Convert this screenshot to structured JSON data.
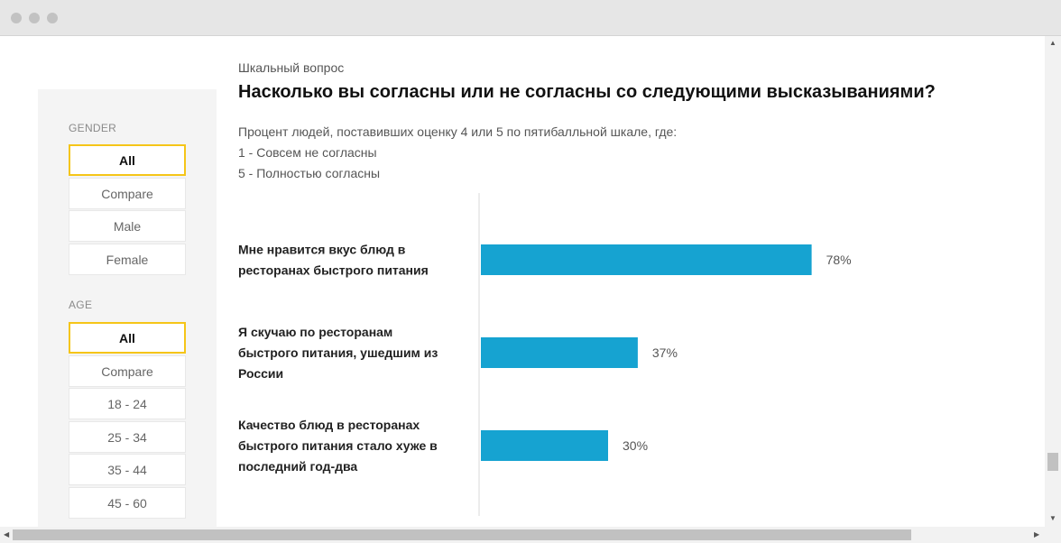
{
  "sidebar": {
    "gender": {
      "label": "GENDER",
      "options": [
        "All",
        "Compare",
        "Male",
        "Female"
      ],
      "selected": "All"
    },
    "age": {
      "label": "AGE",
      "options": [
        "All",
        "Compare",
        "18 - 24",
        "25 - 34",
        "35 - 44",
        "45 - 60"
      ],
      "selected": "All"
    }
  },
  "header": {
    "kicker": "Шкальный вопрос",
    "title": "Насколько вы согласны или не согласны со следующими высказываниями?",
    "desc": [
      "Процент людей, поставивших оценку 4 или 5 по пятибалльной шкале, где:",
      "1 - Совсем не согласны",
      "5 - Полностью согласны"
    ]
  },
  "colors": {
    "bar": "#16a3d1",
    "selected_border": "#f5c518"
  },
  "chart_data": {
    "type": "bar",
    "orientation": "horizontal",
    "categories": [
      [
        "Мне нравится вкус блюд в",
        "ресторанах быстрого питания"
      ],
      [
        "Я скучаю по ресторанам",
        "быстрого питания, ушедшим из",
        "России"
      ],
      [
        "Качество блюд в ресторанах",
        "быстрого питания стало хуже в",
        "последний год-два"
      ]
    ],
    "values": [
      78,
      37,
      30
    ],
    "value_labels": [
      "78%",
      "37%",
      "30%"
    ],
    "unit": "%",
    "xlim": [
      0,
      100
    ]
  }
}
